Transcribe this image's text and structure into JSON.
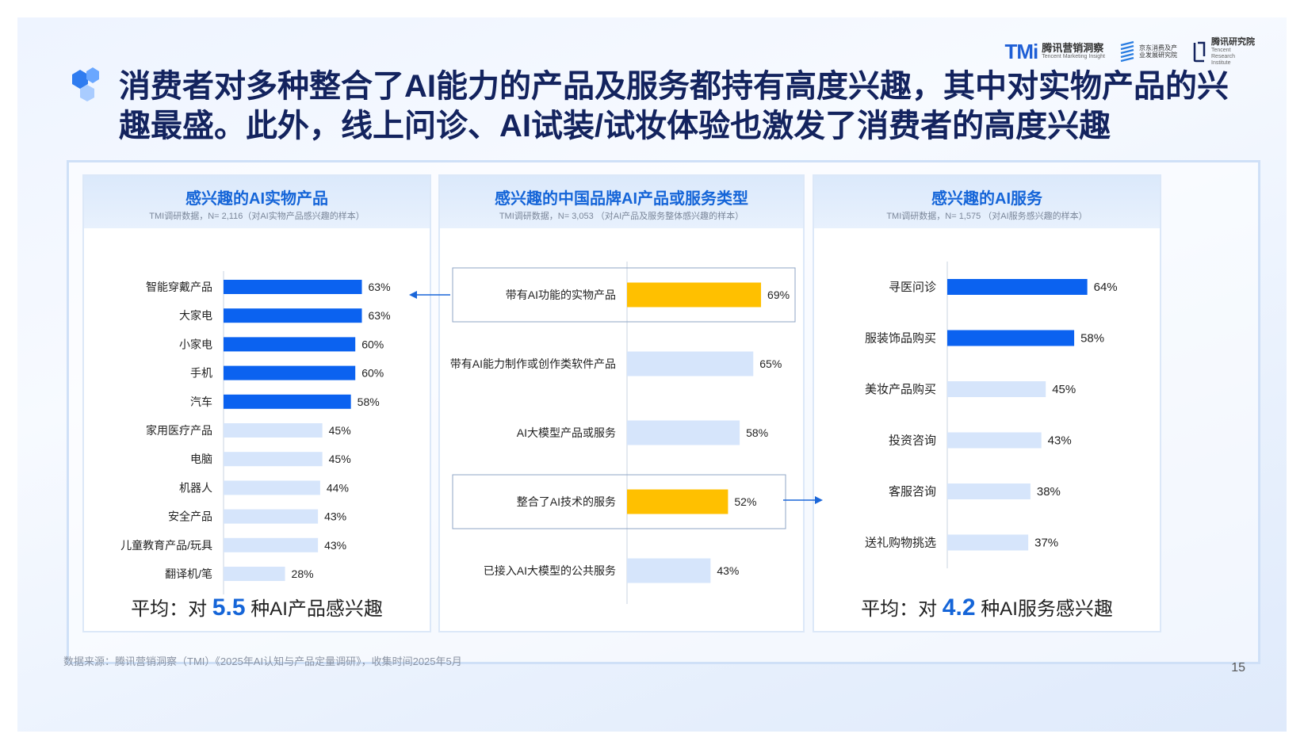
{
  "header": {
    "title_line1": "消费者对多种整合了AI能力的产品及服务都持有高度兴趣，其中对实物产品的兴",
    "title_line2": "趣最盛。此外，线上问诊、AI试装/试妆体验也激发了消费者的高度兴趣",
    "logos": {
      "tmi_mark": "TMi",
      "tmi_name": "腾讯营销洞察",
      "tmi_en": "Tencent Marketing Insight",
      "jd_name": "京东消费及产业发展研究院",
      "tri_name": "腾讯研究院",
      "tri_en": "Tencent Research Institute"
    }
  },
  "panels": [
    {
      "title": "感兴趣的AI实物产品",
      "subtitle": "TMI调研数据，N= 2,116（对AI实物产品感兴趣的样本）",
      "summary_prefix": "平均：对",
      "summary_value": "5.5",
      "summary_suffix": "种AI产品感兴趣"
    },
    {
      "title": "感兴趣的中国品牌AI产品或服务类型",
      "subtitle": "TMI调研数据，N= 3,053 （对AI产品及服务整体感兴趣的样本）"
    },
    {
      "title": "感兴趣的AI服务",
      "subtitle": "TMI调研数据，N= 1,575 （对AI服务感兴趣的样本）",
      "summary_prefix": "平均：对",
      "summary_value": "4.2",
      "summary_suffix": "种AI服务感兴趣"
    }
  ],
  "chart_data": [
    {
      "type": "bar",
      "orientation": "horizontal",
      "title": "感兴趣的AI实物产品",
      "categories": [
        "智能穿戴产品",
        "大家电",
        "小家电",
        "手机",
        "汽车",
        "家用医疗产品",
        "电脑",
        "机器人",
        "安全产品",
        "儿童教育产品/玩具",
        "翻译机/笔"
      ],
      "values": [
        63,
        63,
        60,
        60,
        58,
        45,
        45,
        44,
        43,
        43,
        28
      ],
      "labels": [
        "63%",
        "63%",
        "60%",
        "60%",
        "58%",
        "45%",
        "45%",
        "44%",
        "43%",
        "43%",
        "28%"
      ],
      "highlighted": [
        true,
        true,
        true,
        true,
        true,
        false,
        false,
        false,
        false,
        false,
        false
      ],
      "unit": "%",
      "colors": {
        "highlight": "#0b62f0",
        "normal": "#d6e5fb"
      }
    },
    {
      "type": "bar",
      "orientation": "horizontal",
      "title": "感兴趣的中国品牌AI产品或服务类型",
      "categories": [
        "带有AI功能的实物产品",
        "带有AI能力制作或创作类软件产品",
        "AI大模型产品或服务",
        "整合了AI技术的服务",
        "已接入AI大模型的公共服务"
      ],
      "values": [
        69,
        65,
        58,
        52,
        43
      ],
      "labels": [
        "69%",
        "65%",
        "58%",
        "52%",
        "43%"
      ],
      "highlighted": [
        true,
        false,
        false,
        true,
        false
      ],
      "unit": "%",
      "colors": {
        "highlight": "#ffc000",
        "normal": "#d6e5fb"
      }
    },
    {
      "type": "bar",
      "orientation": "horizontal",
      "title": "感兴趣的AI服务",
      "categories": [
        "寻医问诊",
        "服装饰品购买",
        "美妆产品购买",
        "投资咨询",
        "客服咨询",
        "送礼购物挑选"
      ],
      "values": [
        64,
        58,
        45,
        43,
        38,
        37
      ],
      "labels": [
        "64%",
        "58%",
        "45%",
        "43%",
        "38%",
        "37%"
      ],
      "highlighted": [
        true,
        true,
        false,
        false,
        false,
        false
      ],
      "unit": "%",
      "colors": {
        "highlight": "#0b62f0",
        "normal": "#d6e5fb"
      }
    }
  ],
  "footer": {
    "source": "数据来源：腾讯营销洞察（TMI）《2025年AI认知与产品定量调研》，收集时间2025年5月",
    "page_number": "15"
  }
}
